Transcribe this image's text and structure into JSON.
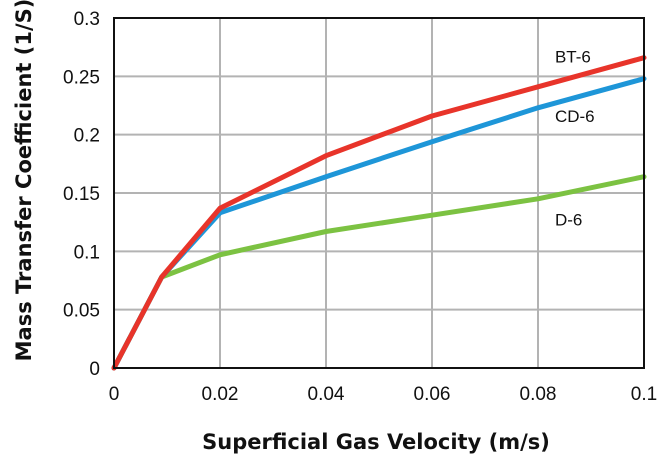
{
  "chart_data": {
    "type": "line",
    "xlabel": "Superficial Gas Velocity (m/s)",
    "ylabel": "Mass Transfer Coefficient (1/S)",
    "xlim": [
      0,
      0.1
    ],
    "ylim": [
      0,
      0.3
    ],
    "xticks": [
      "0",
      "0.02",
      "0.04",
      "0.06",
      "0.08",
      "0.1"
    ],
    "yticks": [
      "0",
      "0.05",
      "0.1",
      "0.15",
      "0.2",
      "0.25",
      "0.3"
    ],
    "grid": true,
    "series": [
      {
        "name": "BT-6",
        "color": "#e8342a",
        "x": [
          0,
          0.009,
          0.02,
          0.04,
          0.06,
          0.08,
          0.1
        ],
        "y": [
          0,
          0.078,
          0.137,
          0.182,
          0.216,
          0.241,
          0.266
        ]
      },
      {
        "name": "CD-6",
        "color": "#1e96d8",
        "x": [
          0,
          0.009,
          0.02,
          0.04,
          0.06,
          0.08,
          0.1
        ],
        "y": [
          0,
          0.078,
          0.133,
          0.164,
          0.194,
          0.223,
          0.248
        ]
      },
      {
        "name": "D-6",
        "color": "#7cc242",
        "x": [
          0,
          0.009,
          0.02,
          0.04,
          0.06,
          0.08,
          0.1
        ],
        "y": [
          0,
          0.078,
          0.097,
          0.117,
          0.131,
          0.145,
          0.164
        ]
      }
    ]
  }
}
